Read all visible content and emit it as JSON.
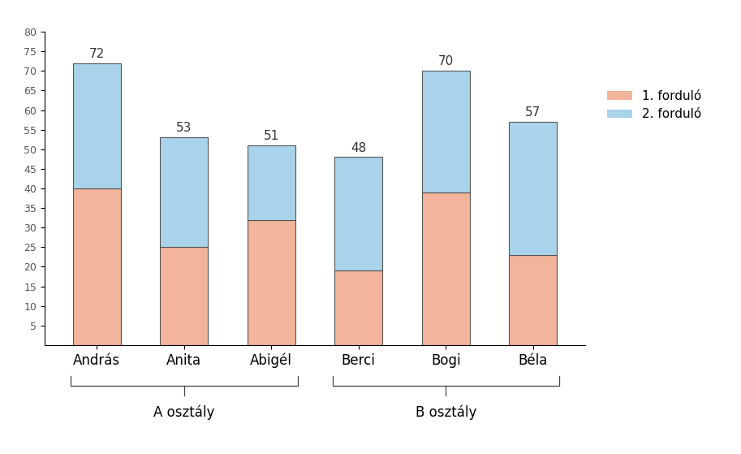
{
  "chart_data": {
    "type": "bar",
    "stacked": true,
    "categories": [
      "András",
      "Anita",
      "Abigél",
      "Berci",
      "Bogi",
      "Béla"
    ],
    "series": [
      {
        "name": "1. forduló",
        "color": "#f2b49a",
        "values": [
          40,
          25,
          32,
          19,
          39,
          23
        ]
      },
      {
        "name": "2. forduló",
        "color": "#a9d3ea",
        "values": [
          32,
          28,
          19,
          29,
          31,
          34
        ]
      }
    ],
    "totals": [
      72,
      53,
      51,
      48,
      70,
      57
    ],
    "groups": [
      {
        "label": "A osztály",
        "members": [
          "András",
          "Anita",
          "Abigél"
        ]
      },
      {
        "label": "B osztály",
        "members": [
          "Berci",
          "Bogi",
          "Béla"
        ]
      }
    ],
    "ylim": [
      0,
      80
    ],
    "yticks": [
      5,
      10,
      15,
      20,
      25,
      30,
      35,
      40,
      45,
      50,
      55,
      60,
      65,
      70,
      75,
      80
    ],
    "legend": "right",
    "grid": false
  }
}
